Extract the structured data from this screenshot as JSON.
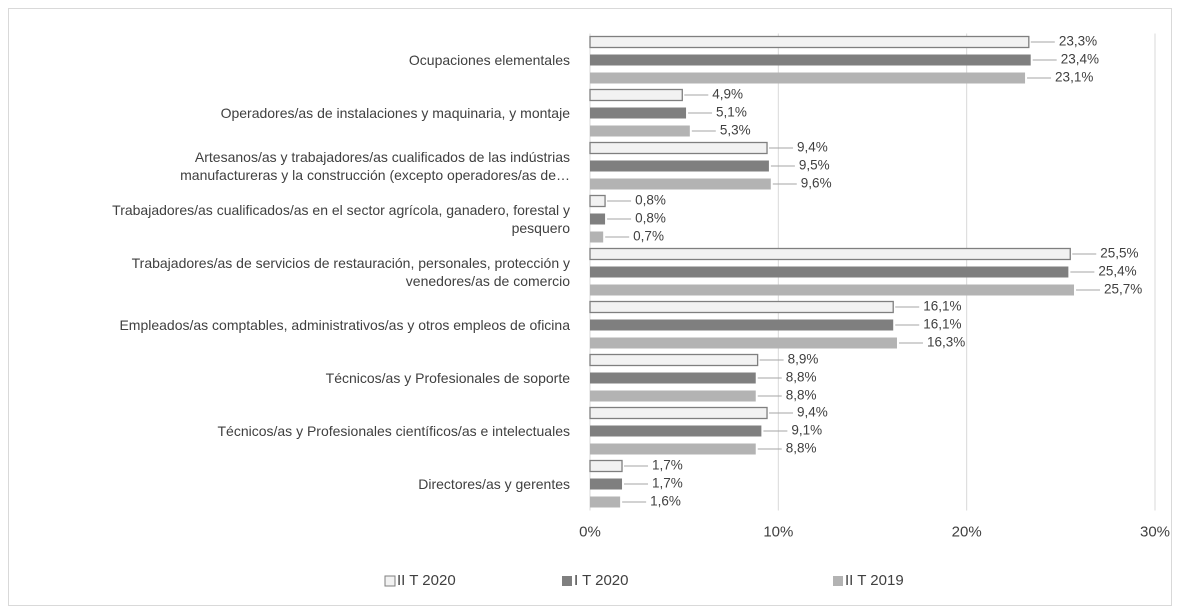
{
  "chart_data": {
    "type": "hbar",
    "categories": [
      "Ocupaciones elementales",
      "Operadores/as de instalaciones y maquinaria, y montaje",
      "Artesanos/as y trabajadores/as cualificados de las indústrias\nmanufactureras y la construcción (excepto operadores/as de…",
      "Trabajadores/as cualificados/as en el sector agrícola, ganadero, forestal y\npesquero",
      "Trabajadores/as de servicios de restauración, personales, protección y\nvenedores/as de comercio",
      "Empleados/as comptables, administrativos/as y otros empleos de oficina",
      "Técnicos/as y Profesionales de soporte",
      "Técnicos/as y  Profesionales científicos/as e intelectuales",
      "Directores/as y gerentes"
    ],
    "series": [
      {
        "name": "II T 2020",
        "color": "#f2f2f2",
        "stroke": "#7f7f7f",
        "values": [
          23.3,
          4.9,
          9.4,
          0.8,
          25.5,
          16.1,
          8.9,
          9.4,
          1.7
        ],
        "value_labels": [
          "23,3%",
          "4,9%",
          "9,4%",
          "0,8%",
          "25,5%",
          "16,1%",
          "8,9%",
          "9,4%",
          "1,7%"
        ]
      },
      {
        "name": "I T 2020",
        "color": "#7f7f7f",
        "values": [
          23.4,
          5.1,
          9.5,
          0.8,
          25.4,
          16.1,
          8.8,
          9.1,
          1.7
        ],
        "value_labels": [
          "23,4%",
          "5,1%",
          "9,5%",
          "0,8%",
          "25,4%",
          "16,1%",
          "8,8%",
          "9,1%",
          "1,7%"
        ]
      },
      {
        "name": "II T 2019",
        "color": "#b3b3b3",
        "values": [
          23.1,
          5.3,
          9.6,
          0.7,
          25.7,
          16.3,
          8.8,
          8.8,
          1.6
        ],
        "value_labels": [
          "23,1%",
          "5,3%",
          "9,6%",
          "0,7%",
          "25,7%",
          "16,3%",
          "8,8%",
          "8,8%",
          "1,6%"
        ]
      }
    ],
    "xlim": [
      0,
      30
    ],
    "xticks": [
      {
        "value": 0,
        "label": "0%"
      },
      {
        "value": 10,
        "label": "10%"
      },
      {
        "value": 20,
        "label": "20%"
      },
      {
        "value": 30,
        "label": "30%"
      }
    ],
    "grid": true,
    "legend": "bottom"
  }
}
